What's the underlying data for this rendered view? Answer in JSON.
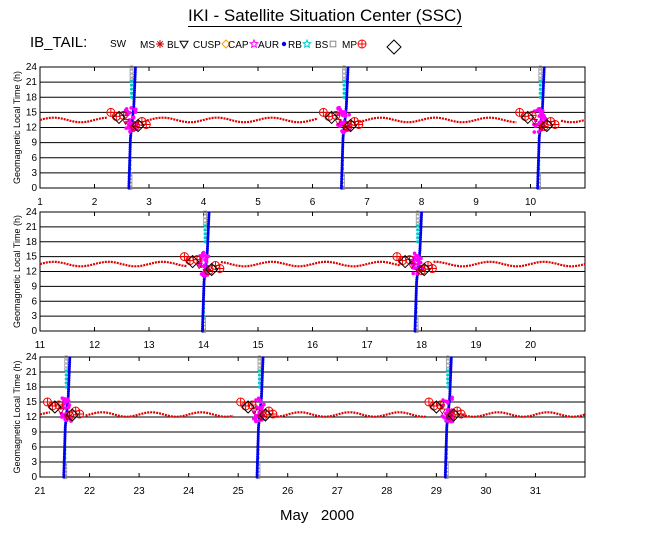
{
  "title": "IKI - Satellite Situation Center (SSC)",
  "legend": {
    "label": "IB_TAIL:",
    "items": [
      {
        "name": "SW",
        "color": "#000000",
        "icon": "none"
      },
      {
        "name": "MS",
        "color": "#cc0000",
        "icon": "asterisk-icon"
      },
      {
        "name": "BL",
        "color": "#000000",
        "icon": "down-triangle-icon"
      },
      {
        "name": "CUSP",
        "color": "#ff9900",
        "icon": "diamond-icon"
      },
      {
        "name": "CAP",
        "color": "#ff00ff",
        "icon": "star-icon"
      },
      {
        "name": "AUR",
        "color": "#0000ee",
        "icon": "dot-icon"
      },
      {
        "name": "RB",
        "color": "#00cccc",
        "icon": "star-icon"
      },
      {
        "name": "BS",
        "color": "#888888",
        "icon": "square-icon"
      },
      {
        "name": "MP",
        "color": "#ff0000",
        "icon": "circle-plus-icon"
      },
      {
        "name": "",
        "color": "#000000",
        "icon": "large-diamond-icon"
      }
    ]
  },
  "footer": "May   2000",
  "chart_data": [
    {
      "type": "scatter",
      "ylabel": "Geomagnetic Local Time (h)",
      "xlim": [
        1,
        11
      ],
      "ylim": [
        0,
        24
      ],
      "y_ticks": [
        0,
        3,
        6,
        9,
        12,
        15,
        18,
        21,
        24
      ],
      "x_ticks": [
        1,
        2,
        3,
        4,
        5,
        6,
        7,
        8,
        9,
        10
      ],
      "ms_baseline": 13.5,
      "crossings": [
        {
          "day": 2.65,
          "gap_start": 2.25,
          "gap_end": 2.95
        },
        {
          "day": 6.55,
          "gap_start": 6.1,
          "gap_end": 6.85
        },
        {
          "day": 10.15,
          "gap_start": 9.75,
          "gap_end": 10.55
        }
      ]
    },
    {
      "type": "scatter",
      "ylabel": "Geomagnetic Local Time (h)",
      "xlim": [
        11,
        21
      ],
      "ylim": [
        0,
        24
      ],
      "y_ticks": [
        0,
        3,
        6,
        9,
        12,
        15,
        18,
        21,
        24
      ],
      "x_ticks": [
        11,
        12,
        13,
        14,
        15,
        16,
        17,
        18,
        19,
        20
      ],
      "ms_baseline": 13.5,
      "crossings": [
        {
          "day": 14.0,
          "gap_start": 13.7,
          "gap_end": 14.3
        },
        {
          "day": 17.9,
          "gap_start": 17.6,
          "gap_end": 18.2
        }
      ]
    },
    {
      "type": "scatter",
      "ylabel": "Geomagnetic Local Time (h)",
      "xlim": [
        21,
        32
      ],
      "ylim": [
        0,
        24
      ],
      "y_ticks": [
        0,
        3,
        6,
        9,
        12,
        15,
        18,
        21,
        24
      ],
      "x_ticks": [
        21,
        22,
        23,
        24,
        25,
        26,
        27,
        28,
        29,
        30,
        31
      ],
      "ms_baseline": 12.5,
      "crossings": [
        {
          "day": 21.5,
          "gap_start": 21.2,
          "gap_end": 21.9
        },
        {
          "day": 25.4,
          "gap_start": 24.9,
          "gap_end": 25.7
        },
        {
          "day": 29.2,
          "gap_start": 28.8,
          "gap_end": 29.5
        }
      ]
    }
  ]
}
